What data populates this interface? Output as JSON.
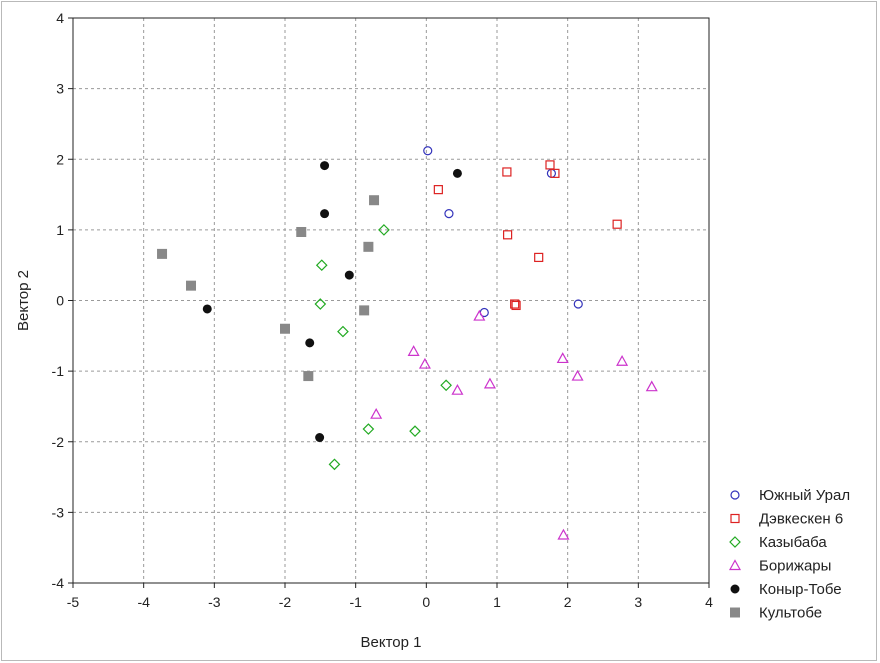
{
  "chart_data": {
    "type": "scatter",
    "xlabel": "Вектор 1",
    "ylabel": "Вектор 2",
    "xlim": [
      -5,
      4
    ],
    "ylim": [
      -4,
      4
    ],
    "xticks": [
      "-5",
      "-4",
      "-3",
      "-2",
      "-1",
      "0",
      "1",
      "2",
      "3",
      "4"
    ],
    "yticks": [
      "4",
      "3",
      "2",
      "1",
      "0",
      "-1",
      "-2",
      "-3",
      "-4"
    ],
    "grid": true,
    "legend_position": "bottom-right, outside plot",
    "series": [
      {
        "name": "Южный Урал",
        "marker": "circle-open",
        "color": "#3333bb",
        "points": [
          [
            0.02,
            2.12
          ],
          [
            0.32,
            1.23
          ],
          [
            1.77,
            1.8
          ],
          [
            0.82,
            -0.17
          ],
          [
            2.15,
            -0.05
          ]
        ]
      },
      {
        "name": "Дэвкескен 6",
        "marker": "square-open",
        "color": "#dd2222",
        "points": [
          [
            1.75,
            1.92
          ],
          [
            1.82,
            1.8
          ],
          [
            1.14,
            1.82
          ],
          [
            0.17,
            1.57
          ],
          [
            2.7,
            1.08
          ],
          [
            1.15,
            0.93
          ],
          [
            1.59,
            0.61
          ],
          [
            1.25,
            -0.05
          ],
          [
            1.27,
            -0.07
          ]
        ]
      },
      {
        "name": "Казыбаба",
        "marker": "diamond-open",
        "color": "#22aa22",
        "points": [
          [
            -0.6,
            1.0
          ],
          [
            -1.48,
            0.5
          ],
          [
            -1.5,
            -0.05
          ],
          [
            -1.18,
            -0.44
          ],
          [
            0.28,
            -1.2
          ],
          [
            -0.82,
            -1.82
          ],
          [
            -0.16,
            -1.85
          ],
          [
            -1.3,
            -2.32
          ]
        ]
      },
      {
        "name": "Борижары",
        "marker": "triangle-open",
        "color": "#cc33cc",
        "points": [
          [
            0.75,
            -0.22
          ],
          [
            -0.18,
            -0.72
          ],
          [
            -0.02,
            -0.9
          ],
          [
            1.93,
            -0.82
          ],
          [
            2.77,
            -0.86
          ],
          [
            2.14,
            -1.07
          ],
          [
            0.9,
            -1.18
          ],
          [
            0.44,
            -1.27
          ],
          [
            3.19,
            -1.22
          ],
          [
            -0.71,
            -1.61
          ],
          [
            1.94,
            -3.32
          ]
        ]
      },
      {
        "name": "Коныр-Тобе",
        "marker": "circle-filled",
        "color": "#111111",
        "points": [
          [
            -1.44,
            1.91
          ],
          [
            0.44,
            1.8
          ],
          [
            -1.44,
            1.23
          ],
          [
            -1.09,
            0.36
          ],
          [
            -3.1,
            -0.12
          ],
          [
            -1.65,
            -0.6
          ],
          [
            -1.51,
            -1.94
          ]
        ]
      },
      {
        "name": "Культобе",
        "marker": "square-filled",
        "color": "#888888",
        "points": [
          [
            -0.74,
            1.42
          ],
          [
            -1.77,
            0.97
          ],
          [
            -0.82,
            0.76
          ],
          [
            -3.74,
            0.66
          ],
          [
            -3.33,
            0.21
          ],
          [
            -0.88,
            -0.14
          ],
          [
            -2.0,
            -0.4
          ],
          [
            -1.67,
            -1.07
          ]
        ]
      }
    ]
  }
}
